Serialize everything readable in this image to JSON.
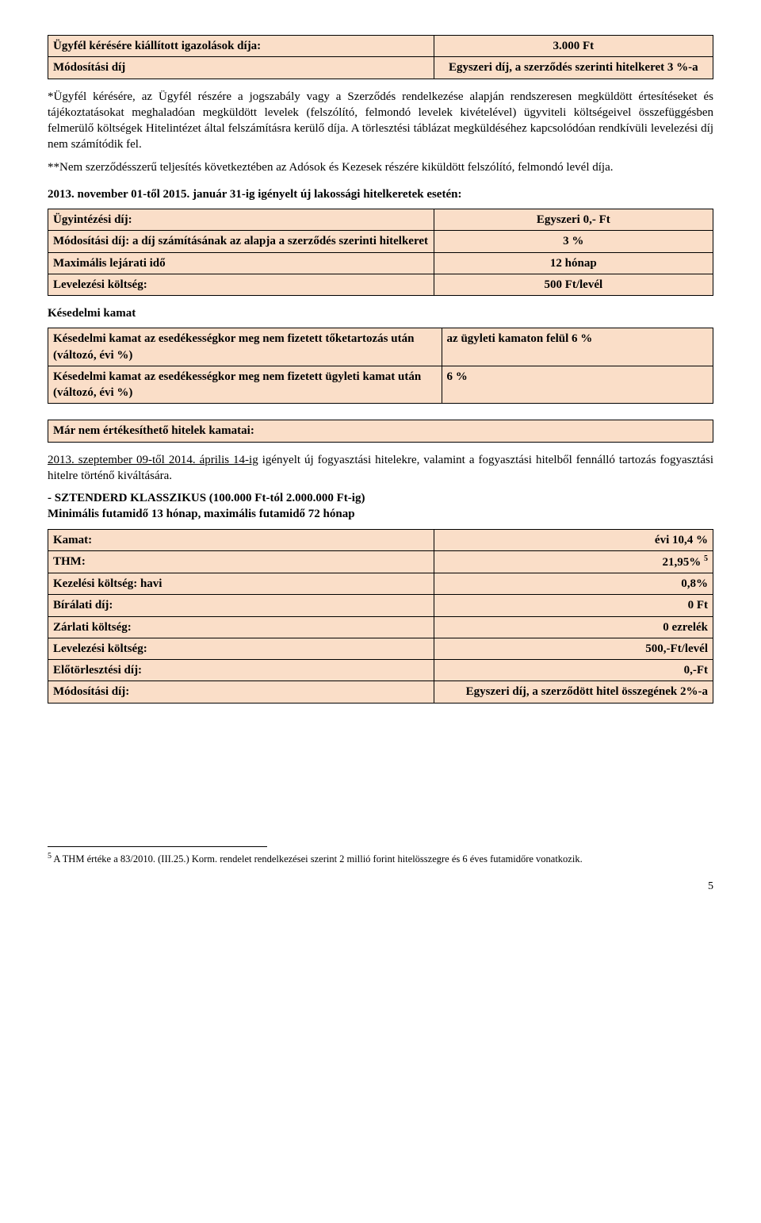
{
  "table1": {
    "r1c1": "Ügyfél kérésére kiállított igazolások díja:",
    "r1c2": "3.000 Ft",
    "r2c1": "Módosítási díj",
    "r2c2": "Egyszeri díj, a szerződés szerinti hitelkeret 3 %-a"
  },
  "para1": "*Ügyfél kérésére, az Ügyfél részére a jogszabály vagy a Szerződés rendelkezése alapján rendszeresen megküldött értesítéseket és tájékoztatásokat meghaladóan megküldött levelek (felszólító, felmondó levelek kivételével) ügyviteli költségeivel összefüggésben felmerülő költségek Hitelintézet által felszámításra kerülő díja. A törlesztési táblázat megküldéséhez kapcsolódóan rendkívüli levelezési díj nem számítódik fel.",
  "para2": "**Nem szerződésszerű teljesítés következtében az  Adósok és Kezesek részére kiküldött felszólító, felmondó levél díja.",
  "heading2": "2013. november 01-től 2015. január 31-ig igényelt új lakossági hitelkeretek esetén:",
  "table2": {
    "r1c1": "Ügyintézési díj:",
    "r1c2": "Egyszeri 0,- Ft",
    "r2c1": "Módosítási díj: a díj számításának az alapja a szerződés szerinti hitelkeret",
    "r2c2": "3 %",
    "r3c1": "Maximális lejárati idő",
    "r3c2": "12 hónap",
    "r4c1": "Levelezési költség:",
    "r4c2": "500 Ft/levél"
  },
  "heading3": "Késedelmi kamat",
  "table3": {
    "r1c1": "Késedelmi kamat az esedékességkor meg nem fizetett tőketartozás után (változó, évi  %)",
    "r1c2": "az ügyleti kamaton felül 6 %",
    "r2c1": "Késedelmi kamat az esedékességkor meg nem fizetett ügyleti kamat után (változó, évi  %)",
    "r2c2": "6 %"
  },
  "heading4": "Már nem értékesíthető hitelek kamatai:",
  "para3a": "2013. szeptember 09-től 2014. április 14-ig",
  "para3b": " igényelt új fogyasztási hitelekre, valamint a fogyasztási hitelből fennálló tartozás fogyasztási hitelre történő kiváltására.",
  "heading5a": "- SZTENDERD KLASSZIKUS  (100.000 Ft-tól  2.000.000 Ft-ig)",
  "heading5b": "Minimális futamidő 13 hónap, maximális futamidő 72 hónap",
  "table4": {
    "r1c1": "Kamat:",
    "r1c2": "évi  10,4 %",
    "r2c1": "THM:",
    "r2c2a": "21,95%",
    "r2c2b": "5",
    "r3c1": "Kezelési költség:  havi",
    "r3c2": "0,8%",
    "r4c1": "Bírálati díj:",
    "r4c2": "0 Ft",
    "r5c1": "Zárlati költség:",
    "r5c2": "0 ezrelék",
    "r6c1": "Levelezési költség:",
    "r6c2": "500,-Ft/levél",
    "r7c1": "Előtörlesztési díj:",
    "r7c2": "0,-Ft",
    "r8c1": "Módosítási  díj:",
    "r8c2": "Egyszeri díj, a szerződött hitel összegének 2%-a"
  },
  "footnote_marker": "5",
  "footnote_text": " A THM értéke a 83/2010. (III.25.) Korm. rendelet rendelkezései szerint 2 millió forint hitelösszegre és 6 éves futamidőre vonatkozik.",
  "pagenum": "5"
}
